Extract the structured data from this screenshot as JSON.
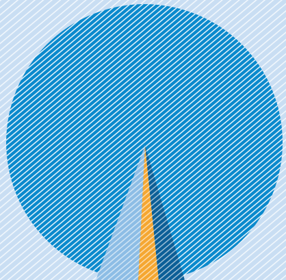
{
  "colors": {
    "background": "#c9def3",
    "background_stripe": "#ffffff",
    "disc": "#0b8acd",
    "disc_stripe": "#ffffff",
    "spire_left": "#8dbde5",
    "spire_middle": "#f5a732",
    "spire_right": "#0c5f97",
    "spire_stripe": "#ffffff"
  },
  "icons": [
    "circular-disc-graphic",
    "spire-graphic"
  ]
}
